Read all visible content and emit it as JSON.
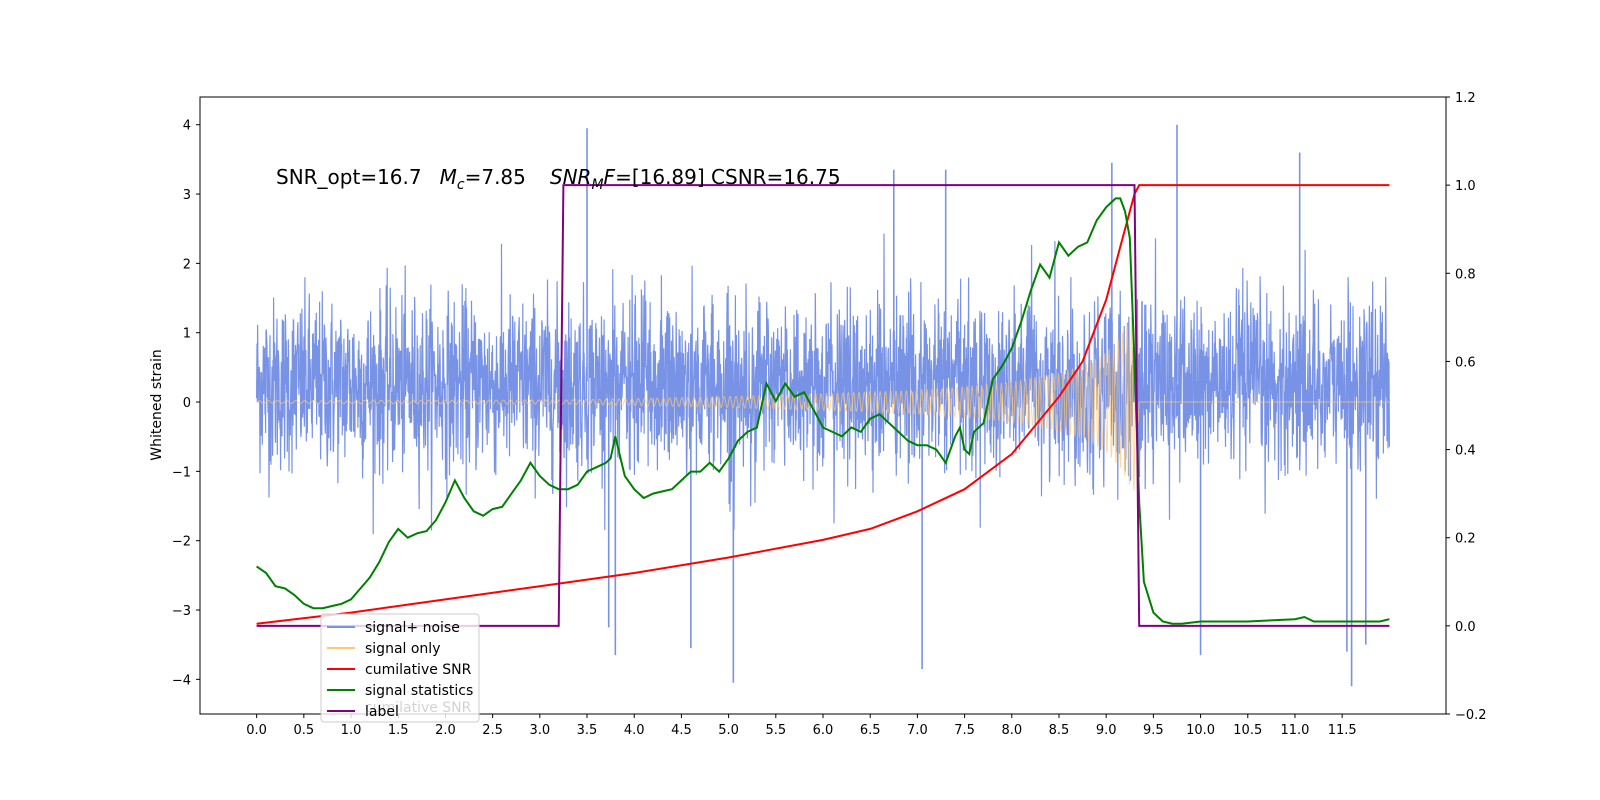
{
  "chart_data": {
    "type": "line",
    "ylabel": "Whitened strain",
    "xlabel": "",
    "xlim": [
      -0.6,
      12.6
    ],
    "ylim": [
      -4.5,
      4.4
    ],
    "y2lim": [
      -0.2,
      1.2
    ],
    "xticks": [
      0.0,
      0.5,
      1.0,
      1.5,
      2.0,
      2.5,
      3.0,
      3.5,
      4.0,
      4.5,
      5.0,
      5.5,
      6.0,
      6.5,
      7.0,
      7.5,
      8.0,
      8.5,
      9.0,
      9.5,
      10.0,
      10.5,
      11.0,
      11.5
    ],
    "xtick_labels": [
      "0.0",
      "0.5",
      "1.0",
      "1.5",
      "2.0",
      "2.5",
      "3.0",
      "3.5",
      "4.0",
      "4.5",
      "5.0",
      "5.5",
      "6.0",
      "6.5",
      "7.0",
      "7.5",
      "8.0",
      "8.5",
      "9.0",
      "9.5",
      "10.0",
      "10.5",
      "11.0",
      "11.5"
    ],
    "yticks": [
      -4,
      -3,
      -2,
      -1,
      0,
      1,
      2,
      3,
      4
    ],
    "ytick_labels": [
      "−4",
      "−3",
      "−2",
      "−1",
      "0",
      "1",
      "2",
      "3",
      "4"
    ],
    "y2ticks": [
      -0.2,
      0.0,
      0.2,
      0.4,
      0.6,
      0.8,
      1.0,
      1.2
    ],
    "y2tick_labels": [
      "−0.2",
      "0.0",
      "0.2",
      "0.4",
      "0.6",
      "0.8",
      "1.0",
      "1.2"
    ],
    "annotation": {
      "part1": "SNR_opt=16.7",
      "mc_symbol": "M",
      "mc_sub": "c",
      "mc_value": "=7.85",
      "snr_symbol": "SNR",
      "snr_sub": "M",
      "snr_f": "F",
      "snr_value": "=[16.89] CSNR=16.75"
    },
    "legend": {
      "placement": "lower-left",
      "overlap_text": "cumilative SNR",
      "entries": [
        {
          "label": "signal+ noise",
          "color": "#7893e6"
        },
        {
          "label": "signal only",
          "color": "#ffc870"
        },
        {
          "label": "cumilative SNR",
          "color": "#ff0000"
        },
        {
          "label": "signal statistics",
          "color": "#008000"
        },
        {
          "label": "label",
          "color": "#800080"
        }
      ]
    },
    "series": [
      {
        "name": "signal+ noise",
        "axis": "left",
        "color": "#7893e6",
        "x_range": [
          0.0,
          12.0
        ],
        "envelope": {
          "typical_low": -1.6,
          "typical_high": 2.1,
          "max": 4.0,
          "min": -4.1
        },
        "spikes": [
          {
            "x": 3.5,
            "y": 3.95
          },
          {
            "x": 9.06,
            "y": 3.45
          },
          {
            "x": 9.75,
            "y": 4.0
          },
          {
            "x": 11.05,
            "y": 3.6
          },
          {
            "x": 6.75,
            "y": 3.35
          },
          {
            "x": 7.3,
            "y": 3.35
          },
          {
            "x": 5.05,
            "y": -4.05
          },
          {
            "x": 3.8,
            "y": -3.65
          },
          {
            "x": 7.05,
            "y": -3.85
          },
          {
            "x": 11.6,
            "y": -4.1
          },
          {
            "x": 11.55,
            "y": -3.6
          },
          {
            "x": 10.0,
            "y": -3.65
          },
          {
            "x": 4.6,
            "y": -3.55
          },
          {
            "x": 3.73,
            "y": -3.25
          },
          {
            "x": 11.75,
            "y": -3.5
          }
        ]
      },
      {
        "name": "signal only",
        "axis": "left",
        "color": "#ffc870",
        "x": [
          0.0,
          3.25,
          4.0,
          5.0,
          6.0,
          7.0,
          7.5,
          8.0,
          8.5,
          8.8,
          9.0,
          9.15,
          9.25,
          9.3,
          9.35,
          12.0
        ],
        "amplitude": [
          0.02,
          0.03,
          0.05,
          0.08,
          0.12,
          0.17,
          0.22,
          0.29,
          0.42,
          0.55,
          0.72,
          0.95,
          1.2,
          1.3,
          0.0,
          0.0
        ]
      },
      {
        "name": "cumilative SNR",
        "axis": "right",
        "color": "#ff0000",
        "x": [
          0.0,
          1.0,
          2.0,
          3.0,
          4.0,
          5.0,
          6.0,
          6.5,
          7.0,
          7.5,
          8.0,
          8.5,
          8.75,
          9.0,
          9.15,
          9.3,
          9.35,
          12.0
        ],
        "values": [
          0.005,
          0.03,
          0.06,
          0.09,
          0.12,
          0.155,
          0.195,
          0.22,
          0.26,
          0.31,
          0.39,
          0.52,
          0.6,
          0.74,
          0.86,
          0.98,
          1.0,
          1.0
        ]
      },
      {
        "name": "signal statistics",
        "axis": "right",
        "color": "#008000",
        "x": [
          0.0,
          0.1,
          0.2,
          0.3,
          0.4,
          0.5,
          0.6,
          0.7,
          0.8,
          0.9,
          1.0,
          1.1,
          1.2,
          1.3,
          1.4,
          1.5,
          1.6,
          1.7,
          1.8,
          1.9,
          2.0,
          2.1,
          2.2,
          2.3,
          2.4,
          2.5,
          2.6,
          2.7,
          2.8,
          2.9,
          3.0,
          3.1,
          3.2,
          3.3,
          3.4,
          3.5,
          3.6,
          3.7,
          3.75,
          3.8,
          3.9,
          4.0,
          4.1,
          4.2,
          4.3,
          4.4,
          4.5,
          4.6,
          4.7,
          4.8,
          4.9,
          5.0,
          5.1,
          5.2,
          5.3,
          5.4,
          5.5,
          5.6,
          5.7,
          5.8,
          5.9,
          6.0,
          6.1,
          6.2,
          6.3,
          6.4,
          6.5,
          6.6,
          6.7,
          6.8,
          6.9,
          7.0,
          7.1,
          7.2,
          7.3,
          7.4,
          7.45,
          7.5,
          7.55,
          7.6,
          7.7,
          7.8,
          7.9,
          8.0,
          8.1,
          8.2,
          8.3,
          8.4,
          8.5,
          8.6,
          8.7,
          8.8,
          8.9,
          9.0,
          9.1,
          9.15,
          9.2,
          9.25,
          9.3,
          9.35,
          9.4,
          9.5,
          9.6,
          9.7,
          9.8,
          10.0,
          10.5,
          11.0,
          11.1,
          11.2,
          11.5,
          11.9,
          12.0
        ],
        "values": [
          0.135,
          0.12,
          0.09,
          0.085,
          0.07,
          0.05,
          0.04,
          0.04,
          0.045,
          0.05,
          0.06,
          0.085,
          0.11,
          0.145,
          0.19,
          0.22,
          0.2,
          0.21,
          0.215,
          0.24,
          0.28,
          0.33,
          0.29,
          0.26,
          0.25,
          0.265,
          0.27,
          0.3,
          0.33,
          0.37,
          0.34,
          0.32,
          0.31,
          0.31,
          0.32,
          0.35,
          0.36,
          0.37,
          0.38,
          0.43,
          0.34,
          0.31,
          0.29,
          0.3,
          0.305,
          0.31,
          0.33,
          0.35,
          0.35,
          0.37,
          0.35,
          0.38,
          0.42,
          0.44,
          0.45,
          0.55,
          0.51,
          0.55,
          0.52,
          0.53,
          0.49,
          0.45,
          0.44,
          0.43,
          0.45,
          0.44,
          0.47,
          0.48,
          0.46,
          0.44,
          0.42,
          0.41,
          0.41,
          0.4,
          0.37,
          0.43,
          0.45,
          0.4,
          0.39,
          0.44,
          0.46,
          0.56,
          0.59,
          0.63,
          0.69,
          0.76,
          0.82,
          0.79,
          0.87,
          0.84,
          0.86,
          0.87,
          0.92,
          0.95,
          0.97,
          0.97,
          0.94,
          0.88,
          0.6,
          0.28,
          0.1,
          0.03,
          0.01,
          0.005,
          0.005,
          0.01,
          0.01,
          0.015,
          0.02,
          0.01,
          0.01,
          0.01,
          0.015
        ]
      },
      {
        "name": "label",
        "axis": "right",
        "color": "#800080",
        "x": [
          0.0,
          3.2,
          3.25,
          9.3,
          9.35,
          12.0
        ],
        "values": [
          0.0,
          0.0,
          1.0,
          1.0,
          0.0,
          0.0
        ]
      }
    ]
  }
}
